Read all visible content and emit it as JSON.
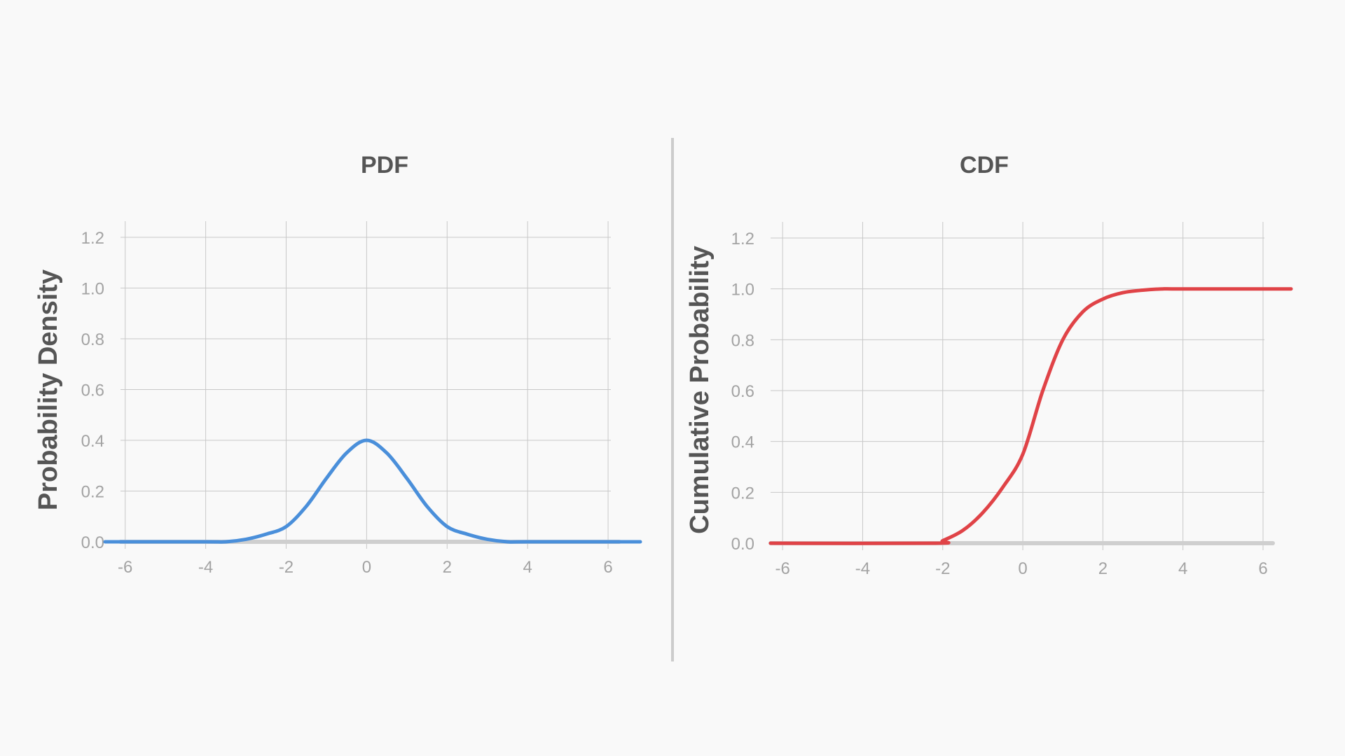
{
  "chart_data": [
    {
      "type": "line",
      "title": "PDF",
      "xlabel": "",
      "ylabel": "Probability Density",
      "xlim": [
        -6.5,
        6.8
      ],
      "ylim": [
        0,
        1.2
      ],
      "x_ticks": [
        -6,
        -4,
        -2,
        0,
        2,
        4,
        6
      ],
      "y_ticks": [
        0.0,
        0.2,
        0.4,
        0.6,
        0.8,
        1.0,
        1.2
      ],
      "x_tick_labels": [
        "-6",
        "-4",
        "-2",
        "0",
        "2",
        "4",
        "6"
      ],
      "y_tick_labels": [
        "0.0",
        "0.2",
        "0.4",
        "0.6",
        "0.8",
        "1.0",
        "1.2"
      ],
      "grid": true,
      "series": [
        {
          "color": "#4a8fda",
          "x": [
            -6.5,
            -4.0,
            -3.5,
            -3.0,
            -2.5,
            -2.0,
            -1.5,
            -1.0,
            -0.5,
            0.0,
            0.5,
            1.0,
            1.5,
            2.0,
            2.5,
            3.0,
            3.5,
            4.0,
            6.8
          ],
          "y": [
            0.0,
            0.0,
            0.0,
            0.01,
            0.03,
            0.06,
            0.14,
            0.25,
            0.35,
            0.4,
            0.35,
            0.25,
            0.14,
            0.06,
            0.03,
            0.01,
            0.0,
            0.0,
            0.0
          ]
        }
      ]
    },
    {
      "type": "line",
      "title": "CDF",
      "xlabel": "",
      "ylabel": "Cumulative Probability",
      "xlim": [
        -6.3,
        6.7
      ],
      "ylim": [
        0,
        1.2
      ],
      "x_ticks": [
        -6,
        -4,
        -2,
        0,
        2,
        4,
        6
      ],
      "y_ticks": [
        0.0,
        0.2,
        0.4,
        0.6,
        0.8,
        1.0,
        1.2
      ],
      "x_tick_labels": [
        "-6",
        "-4",
        "-2",
        "0",
        "2",
        "4",
        "6"
      ],
      "y_tick_labels": [
        "0.0",
        "0.2",
        "0.4",
        "0.6",
        "0.8",
        "1.0",
        "1.2"
      ],
      "grid": true,
      "series": [
        {
          "color": "#e04347",
          "x": [
            -6.3,
            -2.2,
            -2.0,
            -1.5,
            -1.0,
            -0.5,
            0.0,
            0.5,
            1.0,
            1.5,
            2.0,
            2.5,
            3.0,
            3.5,
            4.0,
            6.7
          ],
          "y": [
            0.0,
            0.0,
            0.01,
            0.05,
            0.12,
            0.22,
            0.35,
            0.6,
            0.8,
            0.91,
            0.96,
            0.985,
            0.995,
            1.0,
            1.0,
            1.0
          ]
        }
      ]
    }
  ]
}
